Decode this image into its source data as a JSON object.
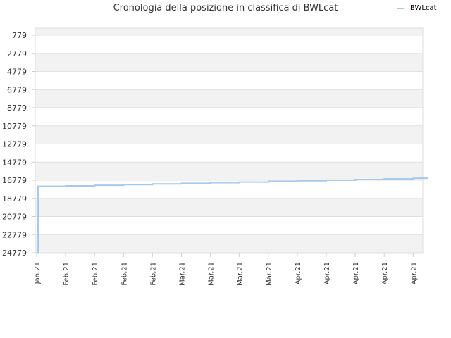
{
  "colors": {
    "series": "#a6c8ea",
    "band": "#f2f2f2",
    "grid": "#e0e0e0",
    "text": "#333333"
  },
  "chart_data": {
    "type": "line",
    "title": "Cronologia della posizione in classifica di BWLcat",
    "legend": {
      "position": "top-right",
      "entries": [
        "BWLcat"
      ]
    },
    "y_axis": {
      "reversed": true,
      "range": [
        779,
        24779
      ],
      "ticks": [
        "779",
        "2779",
        "4779",
        "6779",
        "8779",
        "10779",
        "12779",
        "14779",
        "16779",
        "18779",
        "20779",
        "22779",
        "24779"
      ],
      "alternating_bands": true
    },
    "x_axis": {
      "tick_labels": [
        "Jan.21",
        "Feb.21",
        "Feb.21",
        "Feb.21",
        "Feb.21",
        "Mar.21",
        "Mar.21",
        "Mar.21",
        "Mar.21",
        "Apr.21",
        "Apr.21",
        "Apr.21",
        "Apr.21",
        "Apr.21"
      ]
    },
    "series": [
      {
        "name": "BWLcat",
        "points": [
          [
            0.0,
            24779
          ],
          [
            0.05,
            17450
          ],
          [
            1.0,
            17400
          ],
          [
            2.0,
            17330
          ],
          [
            3.0,
            17260
          ],
          [
            4.0,
            17190
          ],
          [
            5.0,
            17120
          ],
          [
            6.0,
            17050
          ],
          [
            7.0,
            16980
          ],
          [
            8.0,
            16910
          ],
          [
            9.0,
            16840
          ],
          [
            10.0,
            16770
          ],
          [
            11.0,
            16700
          ],
          [
            12.0,
            16630
          ],
          [
            13.0,
            16560
          ],
          [
            13.5,
            16520
          ]
        ]
      }
    ]
  }
}
